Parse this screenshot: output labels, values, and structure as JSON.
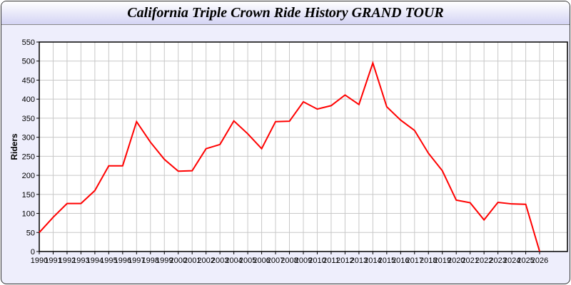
{
  "chart_data": {
    "type": "line",
    "title": "California Triple Crown Ride History GRAND TOUR",
    "xlabel": "",
    "ylabel": "Riders",
    "xlim": [
      1990,
      2028
    ],
    "ylim": [
      0,
      550
    ],
    "yticks": [
      0,
      50,
      100,
      150,
      200,
      250,
      300,
      350,
      400,
      450,
      500,
      550
    ],
    "grid": true,
    "line_color": "#ff0000",
    "x": [
      1990,
      1991,
      1992,
      1993,
      1994,
      1995,
      1996,
      1997,
      1998,
      1999,
      2000,
      2001,
      2002,
      2003,
      2004,
      2005,
      2006,
      2007,
      2008,
      2009,
      2010,
      2011,
      2012,
      2013,
      2014,
      2015,
      2016,
      2017,
      2018,
      2019,
      2020,
      2021,
      2022,
      2023,
      2024,
      2025,
      2026
    ],
    "series": [
      {
        "values": [
          50,
          90,
          126,
          126,
          160,
          225,
          225,
          341,
          287,
          242,
          211,
          212,
          270,
          281,
          343,
          309,
          270,
          341,
          342,
          393,
          374,
          383,
          411,
          386,
          495,
          380,
          345,
          318,
          258,
          212,
          135,
          128,
          83,
          129,
          125,
          124,
          0
        ]
      }
    ]
  }
}
